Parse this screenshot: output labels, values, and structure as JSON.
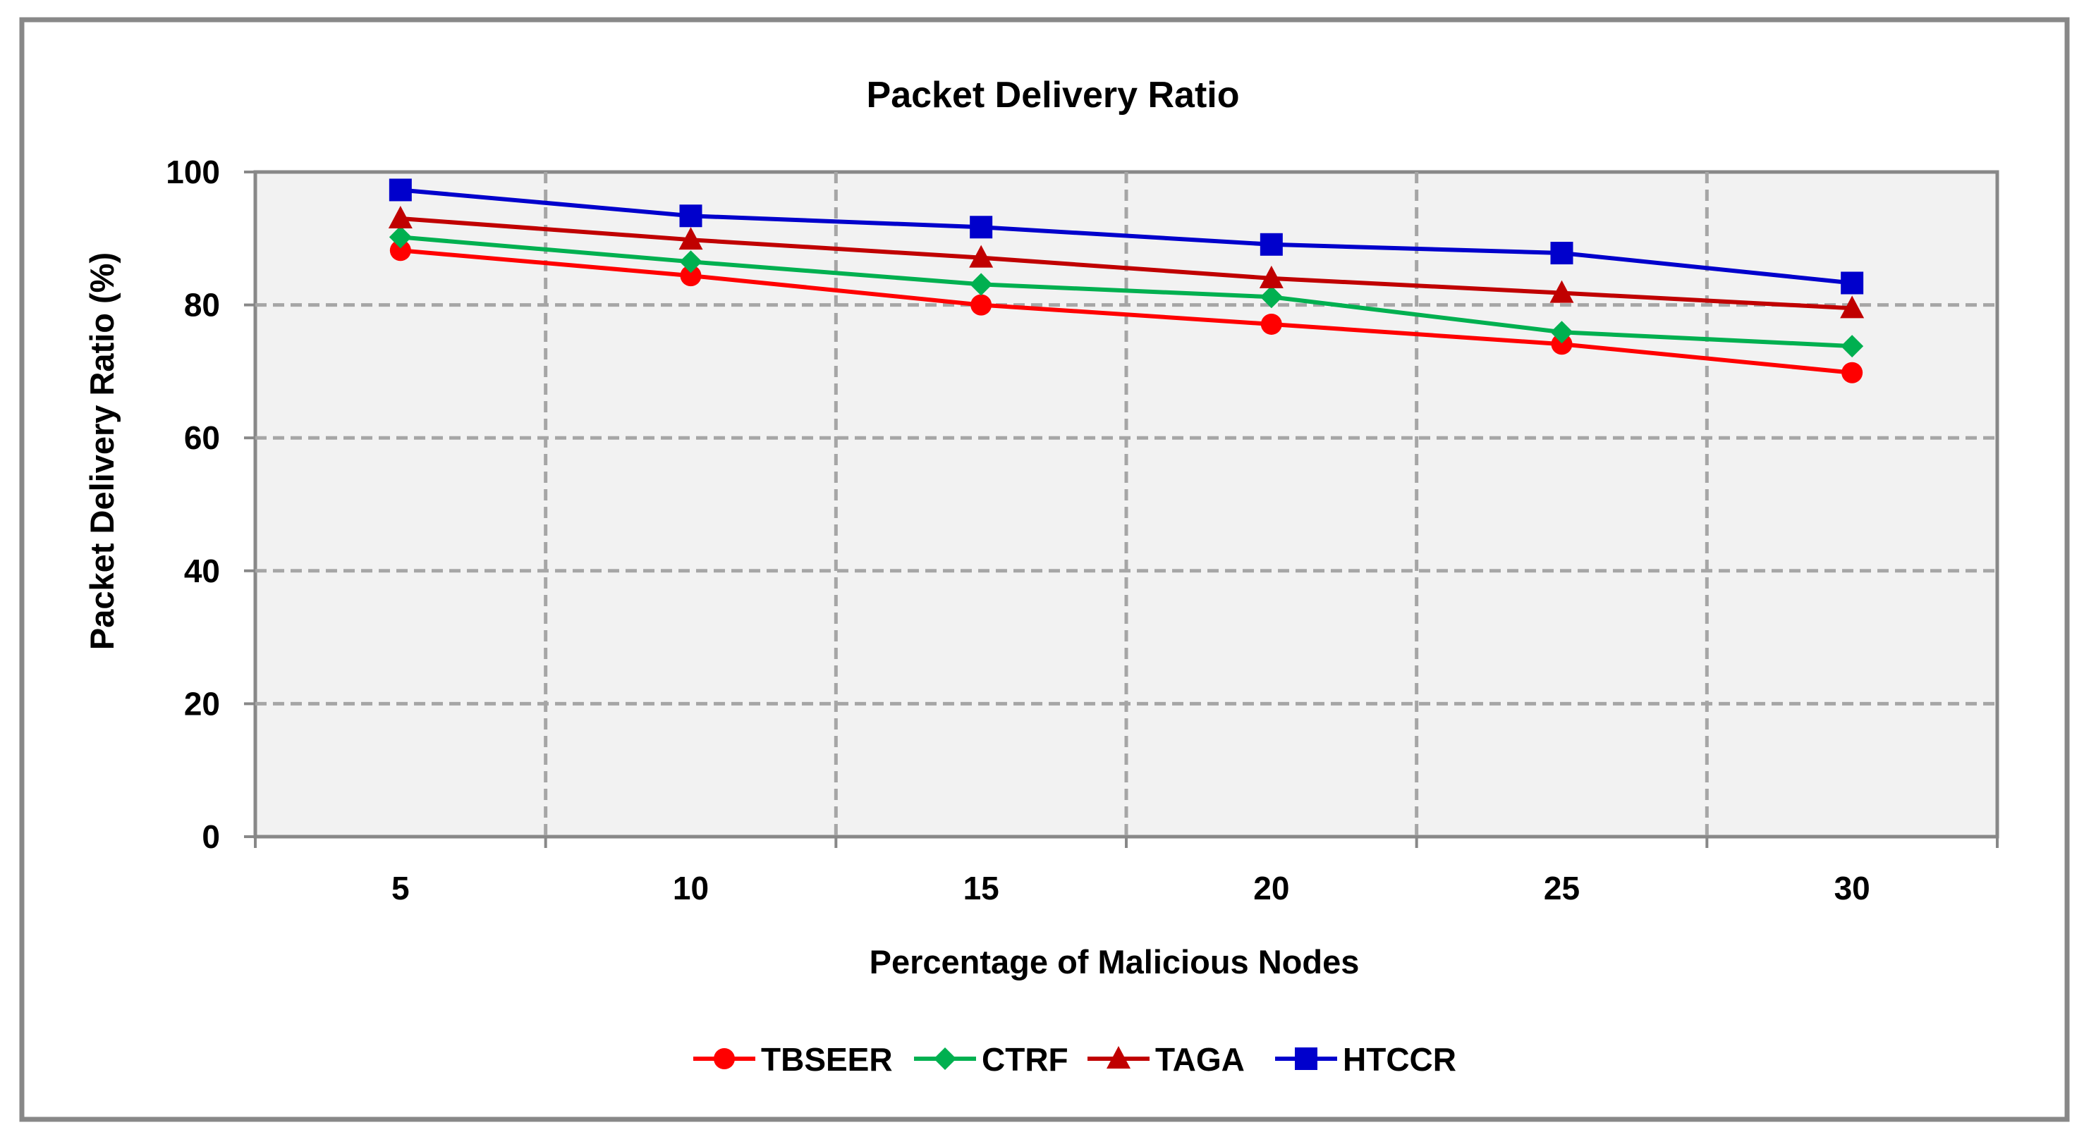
{
  "chart_data": {
    "type": "line",
    "title": "Packet Delivery Ratio",
    "xlabel": "Percentage of Malicious Nodes",
    "ylabel": "Packet Delivery Ratio (%)",
    "categories": [
      "5",
      "10",
      "15",
      "20",
      "25",
      "30"
    ],
    "ylim": [
      0,
      100
    ],
    "yticks": [
      0,
      20,
      40,
      60,
      80,
      100
    ],
    "grid": true,
    "legend_position": "bottom",
    "series": [
      {
        "name": "TBSEER",
        "values": [
          88.2,
          84.4,
          80.0,
          77.1,
          74.1,
          69.8
        ],
        "color": "#ff0000",
        "marker": "circle"
      },
      {
        "name": "CTRF",
        "values": [
          90.2,
          86.5,
          83.1,
          81.2,
          75.9,
          73.8
        ],
        "color": "#00b050",
        "marker": "diamond"
      },
      {
        "name": "TAGA",
        "values": [
          93.0,
          89.8,
          87.1,
          84.0,
          81.8,
          79.5
        ],
        "color": "#c00000",
        "marker": "triangle"
      },
      {
        "name": "HTCCR",
        "values": [
          97.3,
          93.4,
          91.7,
          89.1,
          87.8,
          83.3
        ],
        "color": "#0000cc",
        "marker": "square"
      }
    ]
  }
}
